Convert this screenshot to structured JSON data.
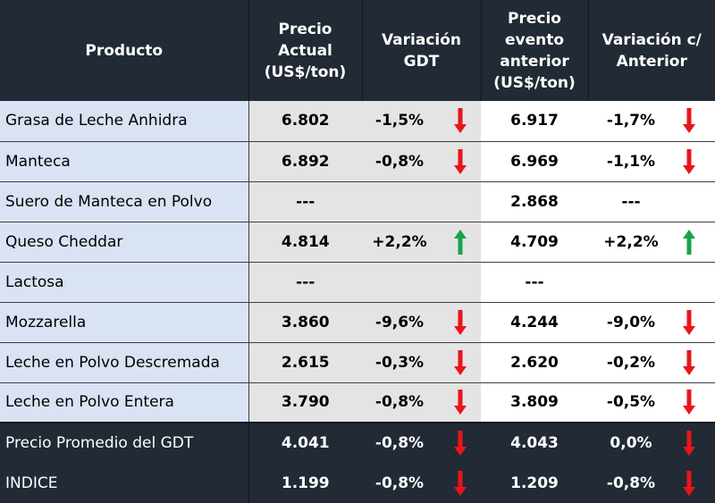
{
  "headers": {
    "product": "Producto",
    "price_current": "Precio Actual (US$/ton)",
    "var_gdt": "Variación GDT",
    "price_prev": "Precio evento anterior (US$/ton)",
    "var_prev": "Variación c/ Anterior"
  },
  "rows": [
    {
      "name": "Grasa de Leche Anhidra",
      "price": "6.802",
      "var_gdt": "-1,5%",
      "var_gdt_dir": "down",
      "prev": "6.917",
      "var_prev": "-1,7%",
      "var_prev_dir": "down"
    },
    {
      "name": "Manteca",
      "price": "6.892",
      "var_gdt": "-0,8%",
      "var_gdt_dir": "down",
      "prev": "6.969",
      "var_prev": "-1,1%",
      "var_prev_dir": "down"
    },
    {
      "name": "Suero de Manteca en Polvo",
      "price": "---",
      "var_gdt": "",
      "var_gdt_dir": "",
      "prev": "2.868",
      "var_prev": "---",
      "var_prev_dir": ""
    },
    {
      "name": "Queso Cheddar",
      "price": "4.814",
      "var_gdt": "+2,2%",
      "var_gdt_dir": "up",
      "prev": "4.709",
      "var_prev": "+2,2%",
      "var_prev_dir": "up"
    },
    {
      "name": "Lactosa",
      "price": "---",
      "var_gdt": "",
      "var_gdt_dir": "",
      "prev": "---",
      "var_prev": "",
      "var_prev_dir": ""
    },
    {
      "name": "Mozzarella",
      "price": "3.860",
      "var_gdt": "-9,6%",
      "var_gdt_dir": "down",
      "prev": "4.244",
      "var_prev": "-9,0%",
      "var_prev_dir": "down"
    },
    {
      "name": "Leche en Polvo Descremada",
      "price": "2.615",
      "var_gdt": "-0,3%",
      "var_gdt_dir": "down",
      "prev": "2.620",
      "var_prev": "-0,2%",
      "var_prev_dir": "down"
    },
    {
      "name": "Leche en Polvo Entera",
      "price": "3.790",
      "var_gdt": "-0,8%",
      "var_gdt_dir": "down",
      "prev": "3.809",
      "var_prev": "-0,5%",
      "var_prev_dir": "down"
    }
  ],
  "summary": [
    {
      "name": "Precio Promedio del GDT",
      "price": "4.041",
      "var_gdt": "-0,8%",
      "var_gdt_dir": "down",
      "prev": "4.043",
      "var_prev": "0,0%",
      "var_prev_dir": "down"
    },
    {
      "name": "INDICE",
      "price": "1.199",
      "var_gdt": "-0,8%",
      "var_gdt_dir": "down",
      "prev": "1.209",
      "var_prev": "-0,8%",
      "var_prev_dir": "down"
    }
  ],
  "colors": {
    "header_bg": "#222a35",
    "name_bg": "#dae3f3",
    "price_bg": "#e4e4e4",
    "arrow_down": "#e8151b",
    "arrow_up": "#17a34a"
  },
  "icons": {
    "down": "arrow-down-icon",
    "up": "arrow-up-icon"
  }
}
